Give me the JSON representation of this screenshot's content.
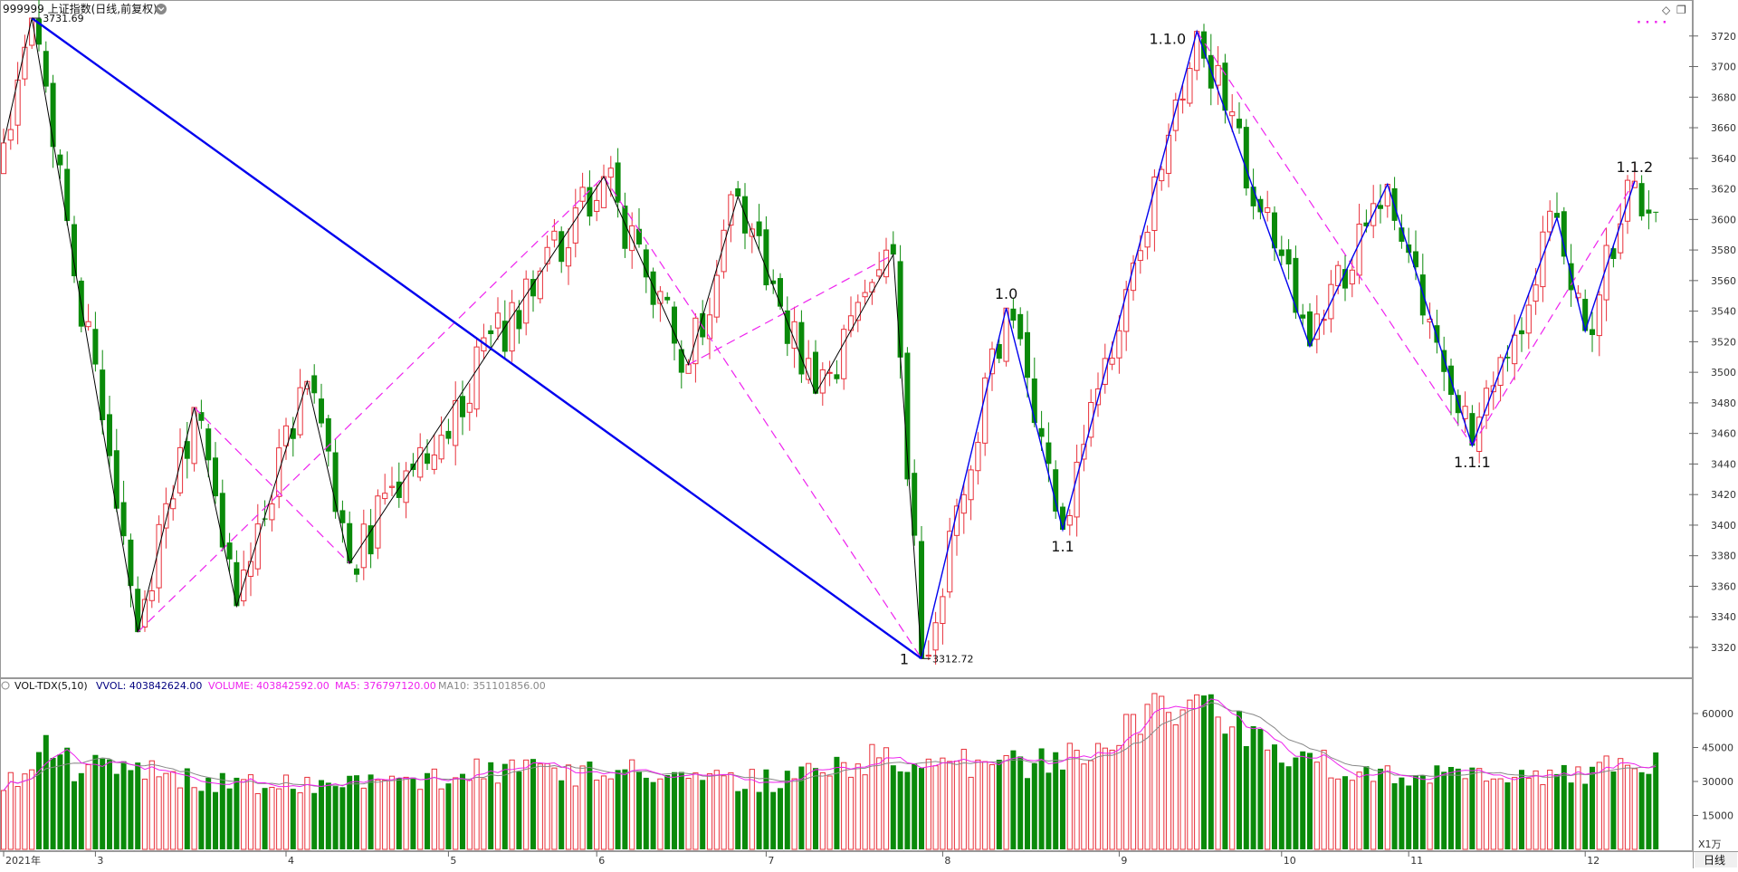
{
  "header": {
    "title": "999999 上证指数(日线,前复权)",
    "menu_icon": "chevron-down-circle-icon",
    "buttons": [
      {
        "name": "diamond-icon",
        "glyph": "◇"
      },
      {
        "name": "restore-window-icon",
        "glyph": "❐"
      }
    ]
  },
  "volume_header": {
    "icon": "circle-icon",
    "indicator": "VOL-TDX(5,10)",
    "vvol": "VVOL: 403842624.00",
    "volume": "VOLUME: 403842592.00",
    "ma5": "MA5: 376797120.00",
    "ma10": "MA10: 351101856.00"
  },
  "footer": {
    "unit_label": "X1万",
    "period_label": "日线"
  },
  "colors": {
    "up": "#e8303a",
    "down": "#0a8a0a",
    "main_wave": "#0000ee",
    "dashed": "#ee22ee",
    "black_wave": "#000000",
    "ma5": "#ee22ee",
    "ma10": "#888888",
    "vvol_text": "#000080"
  },
  "chart_data": [
    {
      "type": "candlestick",
      "title": "",
      "y_ticks": [
        3320,
        3340,
        3360,
        3380,
        3400,
        3420,
        3440,
        3460,
        3480,
        3500,
        3520,
        3540,
        3560,
        3580,
        3600,
        3620,
        3640,
        3660,
        3680,
        3700,
        3720
      ],
      "ylim": [
        3304,
        3740
      ],
      "x_tick_labels": [
        {
          "label": "2021年",
          "bar": 0
        },
        {
          "label": "3",
          "bar": 13
        },
        {
          "label": "4",
          "bar": 40
        },
        {
          "label": "5",
          "bar": 63
        },
        {
          "label": "6",
          "bar": 84
        },
        {
          "label": "7",
          "bar": 108
        },
        {
          "label": "8",
          "bar": 133
        },
        {
          "label": "9",
          "bar": 158
        },
        {
          "label": "10",
          "bar": 181
        },
        {
          "label": "11",
          "bar": 199
        },
        {
          "label": "12",
          "bar": 224
        }
      ],
      "swing_points": [
        {
          "bar": 0,
          "price": 3650
        },
        {
          "bar": 4,
          "price": 3731.69
        },
        {
          "bar": 19,
          "price": 3330
        },
        {
          "bar": 27,
          "price": 3477
        },
        {
          "bar": 33,
          "price": 3347
        },
        {
          "bar": 43,
          "price": 3494
        },
        {
          "bar": 49,
          "price": 3375
        },
        {
          "bar": 85,
          "price": 3628
        },
        {
          "bar": 97,
          "price": 3505
        },
        {
          "bar": 104,
          "price": 3615
        },
        {
          "bar": 115,
          "price": 3486
        },
        {
          "bar": 126,
          "price": 3577
        },
        {
          "bar": 130,
          "price": 3312.72
        },
        {
          "bar": 142,
          "price": 3542
        },
        {
          "bar": 150,
          "price": 3397
        },
        {
          "bar": 169,
          "price": 3723
        },
        {
          "bar": 185,
          "price": 3517
        },
        {
          "bar": 196,
          "price": 3623
        },
        {
          "bar": 208,
          "price": 3452
        },
        {
          "bar": 220,
          "price": 3601
        },
        {
          "bar": 224,
          "price": 3527
        },
        {
          "bar": 231,
          "price": 3625
        },
        {
          "bar": 234,
          "price": 3605
        }
      ],
      "main_wave": [
        {
          "bar": 4,
          "price": 3731.69
        },
        {
          "bar": 130,
          "price": 3312.72
        }
      ],
      "blue_wave": [
        {
          "bar": 130,
          "price": 3312.72
        },
        {
          "bar": 142,
          "price": 3542
        },
        {
          "bar": 150,
          "price": 3397
        },
        {
          "bar": 169,
          "price": 3723
        },
        {
          "bar": 185,
          "price": 3517
        },
        {
          "bar": 196,
          "price": 3623
        },
        {
          "bar": 208,
          "price": 3452
        },
        {
          "bar": 220,
          "price": 3601
        },
        {
          "bar": 224,
          "price": 3527
        },
        {
          "bar": 231,
          "price": 3625
        }
      ],
      "black_wave": [
        {
          "bar": 0,
          "price": 3650
        },
        {
          "bar": 4,
          "price": 3731.69
        },
        {
          "bar": 19,
          "price": 3330
        },
        {
          "bar": 27,
          "price": 3477
        },
        {
          "bar": 33,
          "price": 3347
        },
        {
          "bar": 43,
          "price": 3494
        },
        {
          "bar": 49,
          "price": 3375
        },
        {
          "bar": 85,
          "price": 3628
        },
        {
          "bar": 97,
          "price": 3505
        },
        {
          "bar": 104,
          "price": 3615
        },
        {
          "bar": 115,
          "price": 3486
        },
        {
          "bar": 126,
          "price": 3577
        },
        {
          "bar": 130,
          "price": 3312.72
        }
      ],
      "dashed_lines": [
        [
          {
            "bar": 19,
            "price": 3330
          },
          {
            "bar": 85,
            "price": 3628
          }
        ],
        [
          {
            "bar": 27,
            "price": 3477
          },
          {
            "bar": 49,
            "price": 3375
          }
        ],
        [
          {
            "bar": 85,
            "price": 3628
          },
          {
            "bar": 130,
            "price": 3312.72
          }
        ],
        [
          {
            "bar": 97,
            "price": 3505
          },
          {
            "bar": 126,
            "price": 3577
          }
        ],
        [
          {
            "bar": 169,
            "price": 3723
          },
          {
            "bar": 208,
            "price": 3452
          }
        ],
        [
          {
            "bar": 208,
            "price": 3452
          },
          {
            "bar": 231,
            "price": 3625
          }
        ]
      ],
      "wave_labels": [
        {
          "text": "1.0",
          "bar": 142,
          "price": 3542,
          "pos": "above"
        },
        {
          "text": "1.1",
          "bar": 150,
          "price": 3397,
          "pos": "below"
        },
        {
          "text": "1.1.0",
          "bar": 169,
          "price": 3723,
          "pos": "left"
        },
        {
          "text": "1.1.1",
          "bar": 208,
          "price": 3452,
          "pos": "below"
        },
        {
          "text": "1.1.2",
          "bar": 231,
          "price": 3625,
          "pos": "above"
        },
        {
          "text": "1",
          "bar": 130,
          "price": 3312.72,
          "pos": "left"
        }
      ],
      "price_notes": [
        {
          "text": "3731.69",
          "bar": 4,
          "price": 3731.69
        },
        {
          "text": "3312.72",
          "bar": 130,
          "price": 3312.72
        }
      ],
      "legend_sample": {
        "text": "· · · ·",
        "position": "top-right"
      }
    },
    {
      "type": "bar",
      "title": "",
      "y_ticks": [
        15000,
        30000,
        45000,
        60000
      ],
      "ylim": [
        0,
        68000
      ],
      "volume_points": [
        {
          "bar": 0,
          "value": 27000
        },
        {
          "bar": 6,
          "value": 45000
        },
        {
          "bar": 10,
          "value": 36000
        },
        {
          "bar": 20,
          "value": 34000
        },
        {
          "bar": 30,
          "value": 29000
        },
        {
          "bar": 45,
          "value": 29000
        },
        {
          "bar": 60,
          "value": 29000
        },
        {
          "bar": 66,
          "value": 36000
        },
        {
          "bar": 75,
          "value": 34000
        },
        {
          "bar": 90,
          "value": 34000
        },
        {
          "bar": 100,
          "value": 30000
        },
        {
          "bar": 110,
          "value": 30000
        },
        {
          "bar": 118,
          "value": 37000
        },
        {
          "bar": 126,
          "value": 42000
        },
        {
          "bar": 133,
          "value": 38000
        },
        {
          "bar": 145,
          "value": 37000
        },
        {
          "bar": 155,
          "value": 43000
        },
        {
          "bar": 162,
          "value": 58000
        },
        {
          "bar": 168,
          "value": 62000
        },
        {
          "bar": 175,
          "value": 54000
        },
        {
          "bar": 185,
          "value": 39000
        },
        {
          "bar": 195,
          "value": 33000
        },
        {
          "bar": 205,
          "value": 32000
        },
        {
          "bar": 215,
          "value": 31000
        },
        {
          "bar": 225,
          "value": 34000
        },
        {
          "bar": 233,
          "value": 40000
        }
      ]
    }
  ]
}
